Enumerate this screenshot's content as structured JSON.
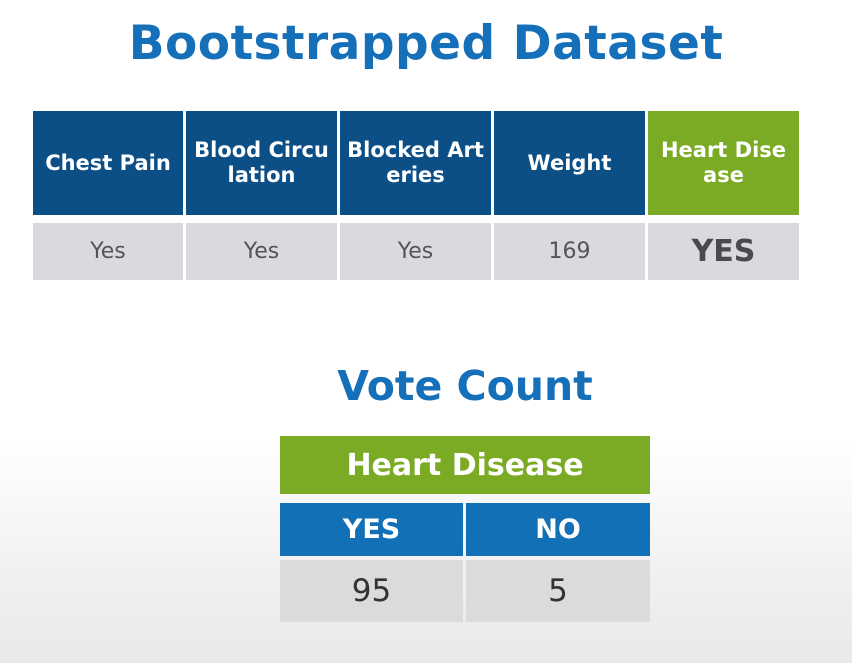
{
  "title": "Bootstrapped Dataset",
  "dataset": {
    "headers": [
      "Chest Pain",
      "Blood Circulation",
      "Blocked Arteries",
      "Weight",
      "Heart Disease"
    ],
    "values": [
      "Yes",
      "Yes",
      "Yes",
      "169",
      "YES"
    ]
  },
  "vote": {
    "title": "Vote Count",
    "header": "Heart Disease",
    "columns": [
      "YES",
      "NO"
    ],
    "counts": [
      "95",
      "5"
    ]
  },
  "colors": {
    "title_blue": "#1570b9",
    "header_blue_dark": "#0c4f86",
    "header_blue": "#1170b6",
    "header_green": "#7bab25",
    "cell_gray": "#d9dadf"
  }
}
